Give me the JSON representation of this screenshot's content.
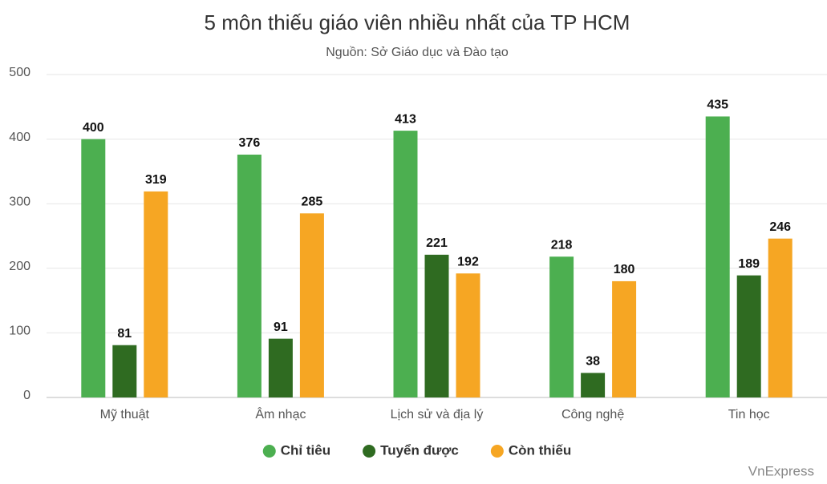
{
  "chart_data": {
    "type": "bar",
    "title": "5 môn thiếu giáo viên nhiều nhất của TP HCM",
    "subtitle": "Nguồn: Sở Giáo dục và Đào tạo",
    "watermark": "VnExpress",
    "categories": [
      "Mỹ thuật",
      "Âm nhạc",
      "Lịch sử và địa lý",
      "Công nghệ",
      "Tin học"
    ],
    "series": [
      {
        "name": "Chỉ tiêu",
        "color": "#4caf50",
        "values": [
          400,
          376,
          413,
          218,
          435
        ]
      },
      {
        "name": "Tuyển được",
        "color": "#2f6b21",
        "values": [
          81,
          91,
          221,
          38,
          189
        ]
      },
      {
        "name": "Còn thiếu",
        "color": "#f6a623",
        "values": [
          319,
          285,
          192,
          180,
          246
        ]
      }
    ],
    "ylim": [
      0,
      500
    ],
    "yticks": [
      0,
      100,
      200,
      300,
      400,
      500
    ],
    "grid": true,
    "legend": "bottom"
  }
}
